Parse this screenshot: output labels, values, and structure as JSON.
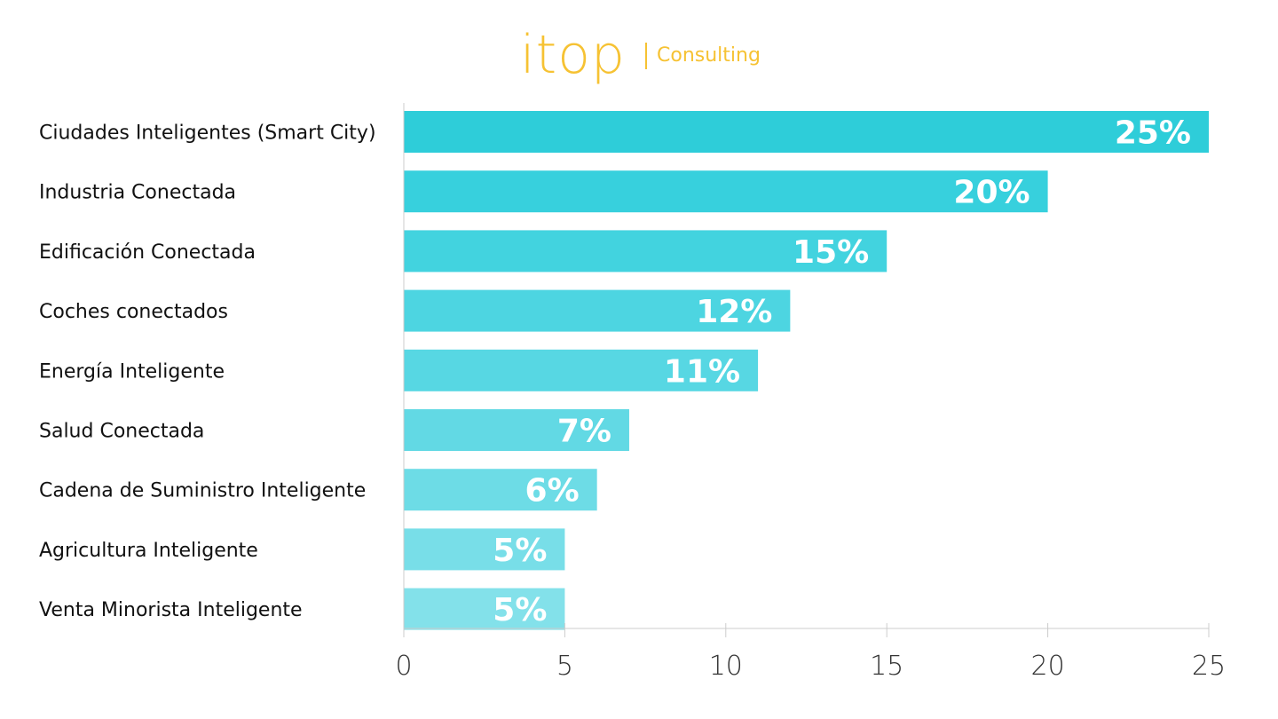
{
  "logo": {
    "brand": "itop",
    "sub": "Consulting",
    "color": "#f6c233"
  },
  "chart_data": {
    "type": "bar",
    "orientation": "horizontal",
    "categories": [
      "Ciudades Inteligentes (Smart City)",
      "Industria Conectada",
      "Edificación Conectada",
      "Coches conectados",
      "Energía Inteligente",
      "Salud Conectada",
      "Cadena de Suministro Inteligente",
      "Agricultura Inteligente",
      "Venta Minorista Inteligente"
    ],
    "values": [
      25,
      20,
      15,
      12,
      11,
      7,
      6,
      5,
      5
    ],
    "value_labels": [
      "25%",
      "20%",
      "15%",
      "12%",
      "11%",
      "7%",
      "6%",
      "5%",
      "5%"
    ],
    "xlim": [
      0,
      25
    ],
    "xticks": [
      0,
      5,
      10,
      15,
      20,
      25
    ],
    "title": "",
    "xlabel": "",
    "ylabel": "",
    "grid": false,
    "colors": [
      "#2ecdd9",
      "#37d0dd",
      "#42d3df",
      "#4dd5e1",
      "#57d7e3",
      "#62d9e4",
      "#6ddce6",
      "#78dee8",
      "#83e1ea"
    ]
  }
}
